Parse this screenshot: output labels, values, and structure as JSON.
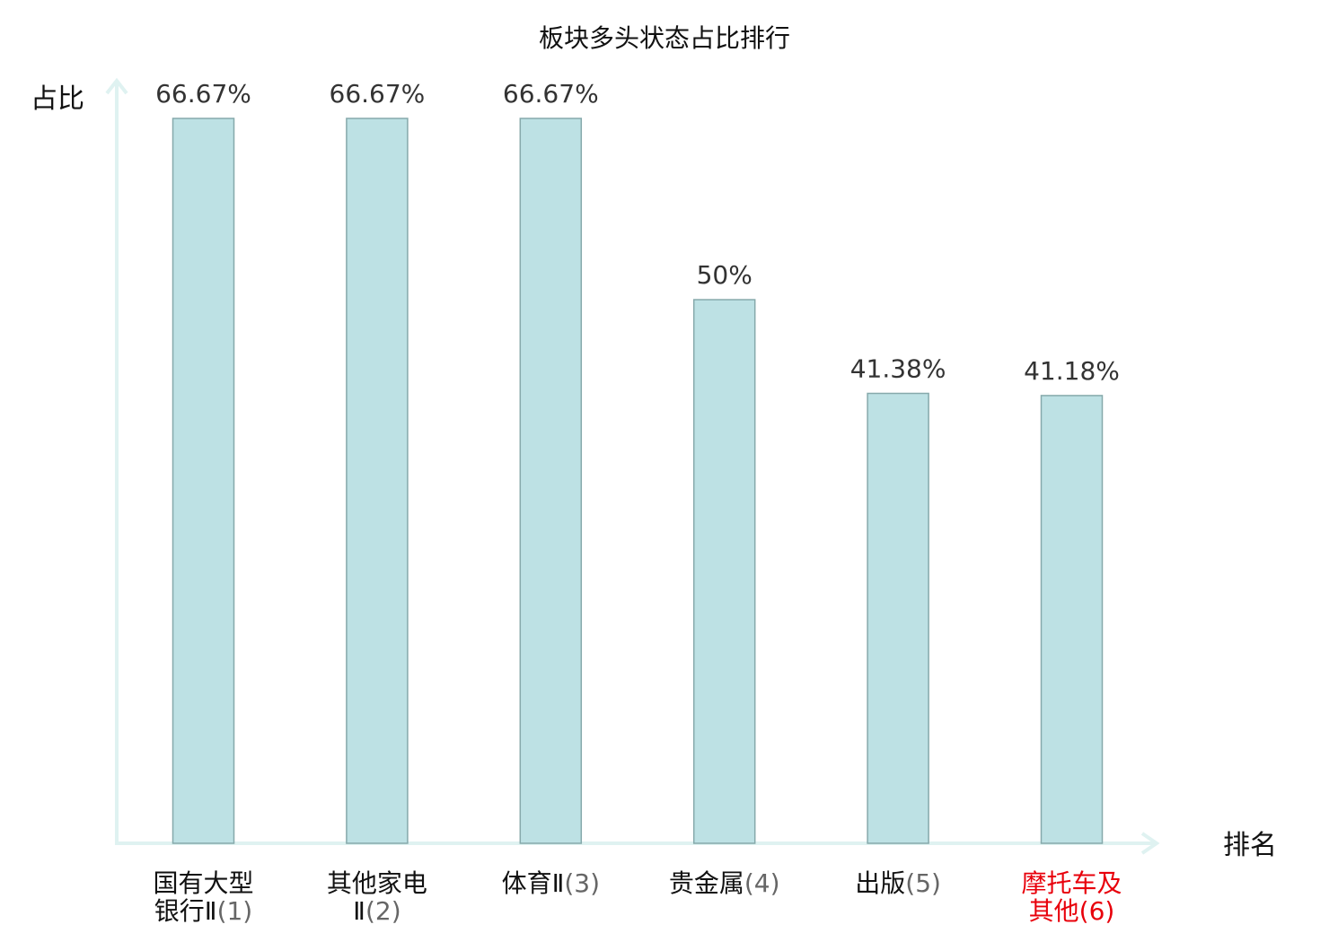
{
  "chart_data": {
    "type": "bar",
    "title": "板块多头状态占比排行",
    "ylabel": "占比",
    "xlabel": "排名",
    "ylim": [
      0,
      80
    ],
    "grid": false,
    "legend": "none",
    "colors": {
      "bar_fill": "#bde1e4",
      "bar_stroke": "#86a9ab",
      "axis": "#dff2f1",
      "highlight_label": "#e8000b"
    },
    "categories": [
      {
        "lines": [
          "国有大型",
          "银行Ⅱ"
        ],
        "rank": "(1)",
        "highlight": false
      },
      {
        "lines": [
          "其他家电",
          "Ⅱ"
        ],
        "rank": "(2)",
        "highlight": false
      },
      {
        "lines": [
          "体育Ⅱ"
        ],
        "rank": "(3)",
        "highlight": false
      },
      {
        "lines": [
          "贵金属"
        ],
        "rank": "(4)",
        "highlight": false
      },
      {
        "lines": [
          "出版"
        ],
        "rank": "(5)",
        "highlight": false
      },
      {
        "lines": [
          "摩托车及",
          "其他"
        ],
        "rank": "(6)",
        "highlight": true
      }
    ],
    "values": [
      66.67,
      66.67,
      66.67,
      50,
      41.38,
      41.18
    ],
    "value_labels": [
      "66.67%",
      "66.67%",
      "66.67%",
      "50%",
      "41.38%",
      "41.18%"
    ]
  }
}
